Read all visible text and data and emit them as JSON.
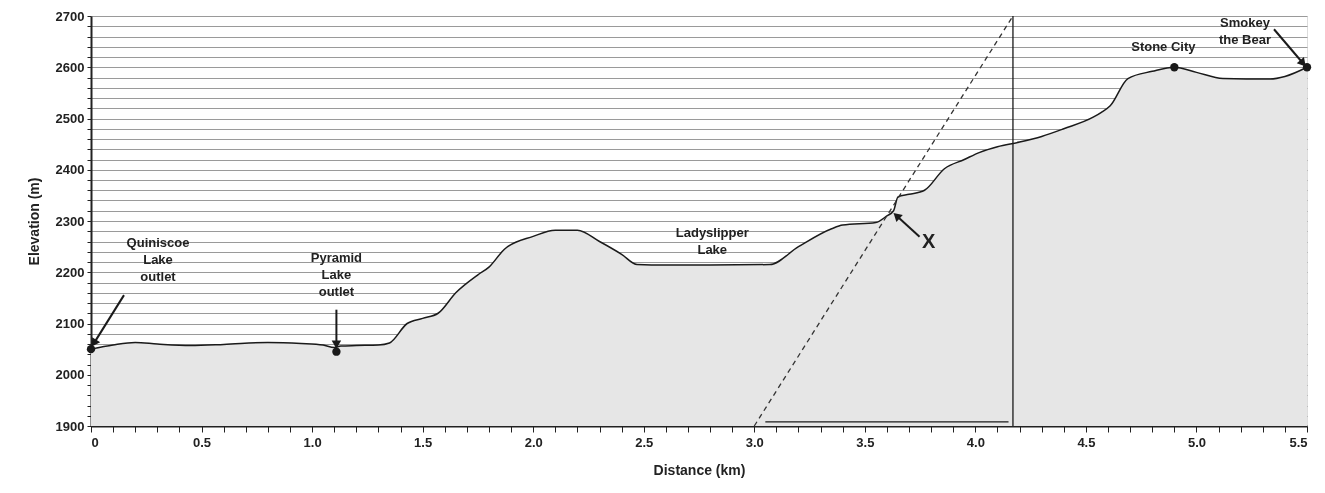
{
  "chart_data": {
    "type": "area",
    "xlabel": "Distance (km)",
    "ylabel": "Elevation (m)",
    "xlim": [
      0,
      5.5
    ],
    "ylim": [
      1900,
      2700
    ],
    "xticks": [
      0,
      {
        "value": 0.1,
        "label": null
      },
      {
        "value": 0.2,
        "label": null
      },
      {
        "value": 0.3,
        "label": null
      },
      {
        "value": 0.4,
        "label": null
      },
      0.5,
      {
        "value": 0.6,
        "label": null
      },
      {
        "value": 0.7,
        "label": null
      },
      {
        "value": 0.8,
        "label": null
      },
      {
        "value": 0.9,
        "label": null
      },
      {
        "value": 1.0,
        "label": "1.0"
      },
      {
        "value": 1.1,
        "label": null
      },
      {
        "value": 1.2,
        "label": null
      },
      {
        "value": 1.3,
        "label": null
      },
      {
        "value": 1.4,
        "label": null
      },
      1.5,
      {
        "value": 1.6,
        "label": null
      },
      {
        "value": 1.7,
        "label": null
      },
      {
        "value": 1.8,
        "label": null
      },
      {
        "value": 1.9,
        "label": null
      },
      {
        "value": 2.0,
        "label": "2.0"
      },
      {
        "value": 2.1,
        "label": null
      },
      {
        "value": 2.2,
        "label": null
      },
      {
        "value": 2.3,
        "label": null
      },
      {
        "value": 2.4,
        "label": null
      },
      2.5,
      {
        "value": 2.6,
        "label": null
      },
      {
        "value": 2.7,
        "label": null
      },
      {
        "value": 2.8,
        "label": null
      },
      {
        "value": 2.9,
        "label": null
      },
      {
        "value": 3.0,
        "label": "3.0"
      },
      {
        "value": 3.1,
        "label": null
      },
      {
        "value": 3.2,
        "label": null
      },
      {
        "value": 3.3,
        "label": null
      },
      {
        "value": 3.4,
        "label": null
      },
      3.5,
      {
        "value": 3.6,
        "label": null
      },
      {
        "value": 3.7,
        "label": null
      },
      {
        "value": 3.8,
        "label": null
      },
      {
        "value": 3.9,
        "label": null
      },
      {
        "value": 4.0,
        "label": "4.0"
      },
      {
        "value": 4.1,
        "label": null
      },
      {
        "value": 4.2,
        "label": null
      },
      {
        "value": 4.3,
        "label": null
      },
      {
        "value": 4.4,
        "label": null
      },
      4.5,
      {
        "value": 4.6,
        "label": null
      },
      {
        "value": 4.7,
        "label": null
      },
      {
        "value": 4.8,
        "label": null
      },
      {
        "value": 4.9,
        "label": null
      },
      {
        "value": 5.0,
        "label": "5.0"
      },
      {
        "value": 5.1,
        "label": null
      },
      {
        "value": 5.2,
        "label": null
      },
      {
        "value": 5.3,
        "label": null
      },
      {
        "value": 5.4,
        "label": null
      },
      5.5
    ],
    "yticks": [
      1900,
      {
        "value": 1920,
        "label": null
      },
      {
        "value": 1940,
        "label": null
      },
      {
        "value": 1960,
        "label": null
      },
      {
        "value": 1980,
        "label": null
      },
      2000,
      {
        "value": 2020,
        "label": null
      },
      {
        "value": 2040,
        "label": null
      },
      {
        "value": 2060,
        "label": null
      },
      {
        "value": 2080,
        "label": null
      },
      2100,
      {
        "value": 2120,
        "label": null
      },
      {
        "value": 2140,
        "label": null
      },
      {
        "value": 2160,
        "label": null
      },
      {
        "value": 2180,
        "label": null
      },
      2200,
      {
        "value": 2220,
        "label": null
      },
      {
        "value": 2240,
        "label": null
      },
      {
        "value": 2260,
        "label": null
      },
      {
        "value": 2280,
        "label": null
      },
      2300,
      {
        "value": 2320,
        "label": null
      },
      {
        "value": 2340,
        "label": null
      },
      {
        "value": 2360,
        "label": null
      },
      {
        "value": 2380,
        "label": null
      },
      2400,
      {
        "value": 2420,
        "label": null
      },
      {
        "value": 2440,
        "label": null
      },
      {
        "value": 2460,
        "label": null
      },
      {
        "value": 2480,
        "label": null
      },
      2500,
      {
        "value": 2520,
        "label": null
      },
      {
        "value": 2540,
        "label": null
      },
      {
        "value": 2560,
        "label": null
      },
      {
        "value": 2580,
        "label": null
      },
      2600,
      {
        "value": 2620,
        "label": null
      },
      {
        "value": 2640,
        "label": null
      },
      {
        "value": 2660,
        "label": null
      },
      {
        "value": 2680,
        "label": null
      },
      2700
    ],
    "grid": "y",
    "series": [
      {
        "color": "#e6e6e6",
        "x": [
          0,
          0.1,
          0.2,
          0.3,
          0.45,
          0.6,
          0.8,
          0.95,
          1.05,
          1.1,
          1.13,
          1.2,
          1.3,
          1.35,
          1.43,
          1.5,
          1.57,
          1.65,
          1.75,
          1.8,
          1.87,
          2.0,
          2.1,
          2.2,
          2.3,
          2.4,
          2.47,
          2.6,
          2.8,
          3.07,
          3.2,
          3.35,
          3.4,
          3.55,
          3.6,
          3.63,
          3.65,
          3.7,
          3.77,
          3.86,
          3.95,
          4.02,
          4.1,
          4.2,
          4.3,
          4.4,
          4.535,
          4.57,
          4.61,
          4.69,
          4.8,
          4.9,
          5.0,
          5.12,
          5.33,
          5.4,
          5.5
        ],
        "values": [
          2050,
          2058,
          2063,
          2060,
          2057,
          2059,
          2063,
          2061,
          2058,
          2053,
          2056,
          2057,
          2058,
          2062,
          2100,
          2110,
          2120,
          2160,
          2195,
          2210,
          2245,
          2270,
          2282,
          2282,
          2260,
          2235,
          2215,
          2214,
          2214,
          2215,
          2250,
          2285,
          2292,
          2297,
          2310,
          2320,
          2347,
          2352,
          2360,
          2402,
          2420,
          2434,
          2445,
          2454,
          2465,
          2480,
          2503,
          2512,
          2525,
          2578,
          2592,
          2600,
          2590,
          2578,
          2577,
          2582,
          2600
        ]
      },
      {
        "type": "line",
        "color": "#333333",
        "line_style": "dashed",
        "x": [
          3.0,
          4.17
        ],
        "values": [
          1900,
          2700
        ]
      },
      {
        "type": "line",
        "color": "#1a1a1a",
        "x": [
          4.17,
          4.17
        ],
        "values": [
          1900,
          2700
        ]
      },
      {
        "type": "line",
        "color": "#1a1a1a",
        "x": [
          3.05,
          4.15
        ],
        "values": [
          1908,
          1908
        ]
      },
      {
        "type": "scatter",
        "color": "#1a1a1a",
        "x": [
          0,
          1.11,
          4.9,
          5.5
        ],
        "values": [
          2050,
          2045,
          2600,
          2600
        ]
      }
    ],
    "annotations": [
      {
        "text": "Quiniscoe\nLake\noutlet",
        "x": 0,
        "y": 2050
      },
      {
        "text": "Pyramid\nLake\noutlet",
        "x": 1.11,
        "y": 2045
      },
      {
        "text": "Ladyslipper\nLake",
        "x": 2.81,
        "y": 2215
      },
      {
        "text": "X",
        "x": 3.63,
        "y": 2316
      },
      {
        "text": "Stone City",
        "x": 4.9,
        "y": 2600
      },
      {
        "text": "Smokey\nthe Bear",
        "x": 5.5,
        "y": 2600
      }
    ]
  }
}
